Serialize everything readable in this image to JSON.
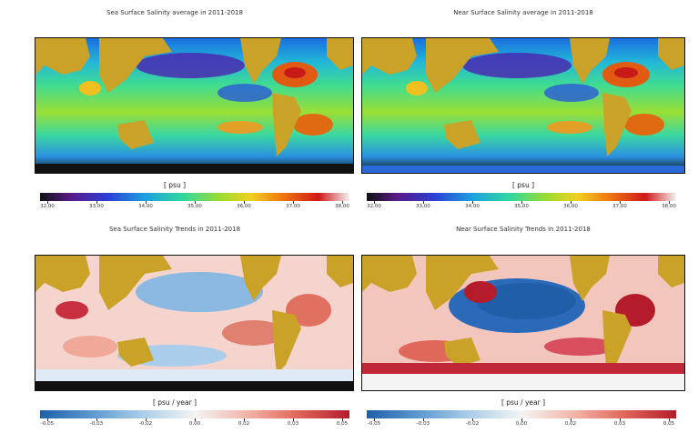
{
  "panels": [
    {
      "title": "Sea Surface Salinity average in 2011-2018",
      "unit": "[ psu ]",
      "colorbar_ticks": [
        "32,00",
        "33,00",
        "34,00",
        "35,00",
        "36,00",
        "37,00",
        "38,00"
      ],
      "colorbar_type": "sequential"
    },
    {
      "title": "Near Surface Salinity average in 2011-2018",
      "unit": "[ psu ]",
      "colorbar_ticks": [
        "32,00",
        "33,00",
        "34,00",
        "35,00",
        "36,00",
        "37,00",
        "38,00"
      ],
      "colorbar_type": "sequential"
    },
    {
      "title": "Sea Surface Salinity Trends in 2011-2018",
      "unit": "[ psu / year ]",
      "colorbar_ticks": [
        "-0,05",
        "-0,03",
        "-0,02",
        "0,00",
        "0,02",
        "0,03",
        "0,05"
      ],
      "colorbar_type": "diverging"
    },
    {
      "title": "Near Surface Salinity Trends in 2011-2018",
      "unit": "[ psu / year ]",
      "colorbar_ticks": [
        "-0,05",
        "-0,03",
        "-0,02",
        "0,00",
        "0,02",
        "0,03",
        "0,05"
      ],
      "colorbar_type": "diverging"
    }
  ],
  "colors": {
    "land": "#c9a227",
    "sequential": [
      "#111111",
      "#5a1a8a",
      "#2a3fd6",
      "#1ea0e0",
      "#2fd8a0",
      "#9adc30",
      "#f0d020",
      "#f07a10",
      "#d01818",
      "#f2f2f2"
    ],
    "diverging": [
      "#1f5fa8",
      "#5e9ad0",
      "#a9cdea",
      "#f4f4f4",
      "#f3b4a8",
      "#e0685a",
      "#b41c2c"
    ]
  }
}
